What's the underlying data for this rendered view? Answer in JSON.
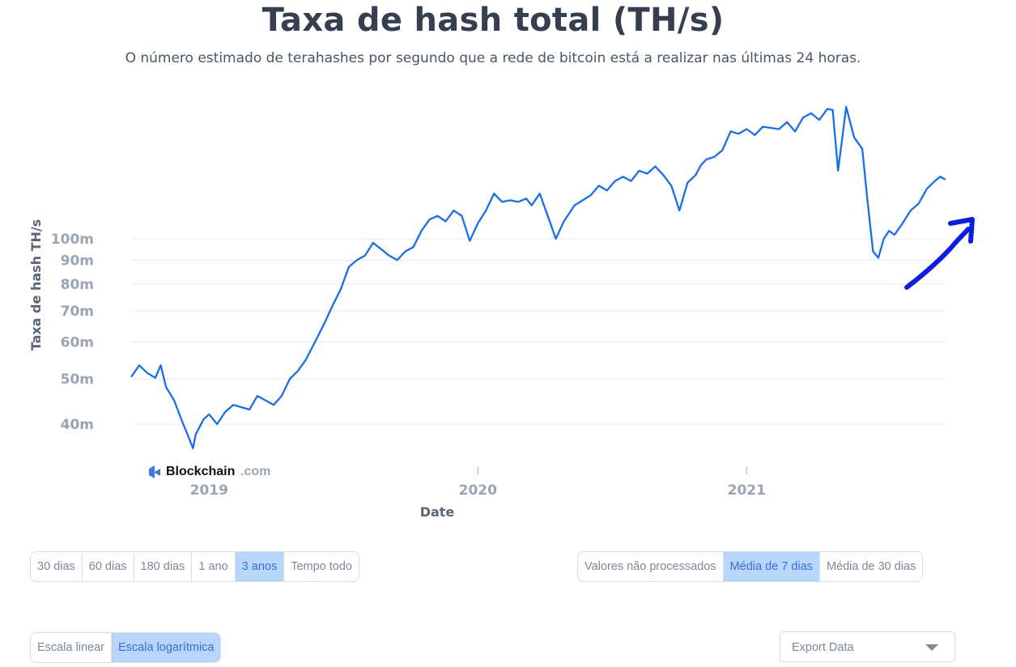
{
  "title": "Taxa de hash total (TH/s)",
  "subtitle": "O número estimado de terahashes por segundo que a rede de bitcoin está a realizar nas últimas 24 horas.",
  "watermark": {
    "brand": "Blockchain",
    "suffix": ".com"
  },
  "colors": {
    "line": "#1a6ee6",
    "grid": "#e8ebef",
    "axis_text": "#9aa5b4",
    "arrow": "#0d1ee0",
    "active_button": "#b8d5fb"
  },
  "chart_data": {
    "type": "line",
    "title": "Taxa de hash total (TH/s)",
    "xlabel": "Date",
    "ylabel": "Taxa de hash TH/s",
    "y_scale": "log",
    "y_ticks": [
      40,
      50,
      60,
      70,
      80,
      90,
      100
    ],
    "y_tick_labels": [
      "40m",
      "50m",
      "60m",
      "70m",
      "80m",
      "90m",
      "100m"
    ],
    "x_ticks": [
      2019,
      2020,
      2021
    ],
    "x_tick_labels": [
      "2019",
      "2020",
      "2021"
    ],
    "xlim": [
      2018.71,
      2021.74
    ],
    "grid": true,
    "series": [
      {
        "x": [
          2018.71,
          2018.74,
          2018.77,
          2018.8,
          2018.82,
          2018.84,
          2018.87,
          2018.9,
          2018.92,
          2018.94,
          2018.95,
          2018.98,
          2019.0,
          2019.03,
          2019.06,
          2019.09,
          2019.12,
          2019.15,
          2019.18,
          2019.21,
          2019.24,
          2019.27,
          2019.3,
          2019.33,
          2019.36,
          2019.4,
          2019.43,
          2019.46,
          2019.49,
          2019.52,
          2019.55,
          2019.58,
          2019.61,
          2019.64,
          2019.67,
          2019.7,
          2019.73,
          2019.76,
          2019.79,
          2019.82,
          2019.85,
          2019.88,
          2019.91,
          2019.94,
          2019.97,
          2020.0,
          2020.03,
          2020.06,
          2020.09,
          2020.12,
          2020.15,
          2020.18,
          2020.2,
          2020.23,
          2020.26,
          2020.29,
          2020.32,
          2020.36,
          2020.39,
          2020.42,
          2020.45,
          2020.48,
          2020.51,
          2020.54,
          2020.57,
          2020.6,
          2020.63,
          2020.66,
          2020.69,
          2020.72,
          2020.75,
          2020.78,
          2020.81,
          2020.83,
          2020.85,
          2020.88,
          2020.91,
          2020.94,
          2020.97,
          2021.0,
          2021.03,
          2021.06,
          2021.09,
          2021.12,
          2021.15,
          2021.18,
          2021.21,
          2021.24,
          2021.27,
          2021.3,
          2021.32,
          2021.34,
          2021.36,
          2021.37,
          2021.4,
          2021.43,
          2021.45,
          2021.47,
          2021.49,
          2021.51,
          2021.53,
          2021.55,
          2021.58,
          2021.61,
          2021.64,
          2021.67,
          2021.7,
          2021.72,
          2021.74
        ],
        "values": [
          50.5,
          53.5,
          51.5,
          50.3,
          53.5,
          48.0,
          45.0,
          40.5,
          38.0,
          35.5,
          38.0,
          41.0,
          42.0,
          40.0,
          42.5,
          44.0,
          43.5,
          43.0,
          46.0,
          45.0,
          44.0,
          46.0,
          50.0,
          52.0,
          55.0,
          61.0,
          66.0,
          72.0,
          78.0,
          87.0,
          90.0,
          92.0,
          98.0,
          95.0,
          92.0,
          90.0,
          94.0,
          96.0,
          104.0,
          110.0,
          112.0,
          109.0,
          115.0,
          112.0,
          99.0,
          108.0,
          115.0,
          125.0,
          120.0,
          121.0,
          120.0,
          122.0,
          118.0,
          125.0,
          112.0,
          100.0,
          109.0,
          118.0,
          121.0,
          124.0,
          130.0,
          127.0,
          133.0,
          136.0,
          133.0,
          140.0,
          138.0,
          143.0,
          137.0,
          130.0,
          115.0,
          132.0,
          137.0,
          144.0,
          148.0,
          150.0,
          155.0,
          170.0,
          168.0,
          172.0,
          167.0,
          174.0,
          173.0,
          172.0,
          178.0,
          170.0,
          182.0,
          186.0,
          180.0,
          190.0,
          189.0,
          140.0,
          172.0,
          192.0,
          165.0,
          156.0,
          120.0,
          94.0,
          91.0,
          100.0,
          104.0,
          102.0,
          108.0,
          115.0,
          119.0,
          128.0,
          133.0,
          136.0,
          134.0
        ]
      }
    ]
  },
  "time_range": {
    "options": [
      "30 dias",
      "60 dias",
      "180 dias",
      "1 ano",
      "3 anos",
      "Tempo todo"
    ],
    "selected": "3 anos"
  },
  "averaging": {
    "options": [
      "Valores não processados",
      "Média de 7 dias",
      "Média de 30 dias"
    ],
    "selected": "Média de 7 dias"
  },
  "scale": {
    "options": [
      "Escala linear",
      "Escala logarítmica"
    ],
    "selected": "Escala logarítmica"
  },
  "export": {
    "label": "Export Data"
  }
}
